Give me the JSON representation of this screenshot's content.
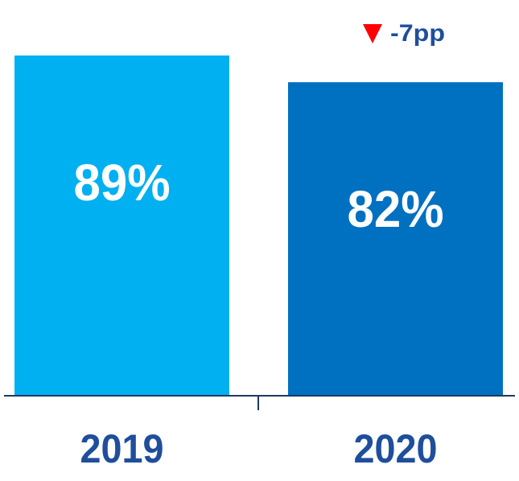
{
  "chart_data": {
    "type": "bar",
    "categories": [
      "2019",
      "2020"
    ],
    "values": [
      89,
      82
    ],
    "value_labels": [
      "89%",
      "82%"
    ],
    "colors": [
      "#00b0f0",
      "#0070c0"
    ],
    "annotation": "-7pp"
  }
}
